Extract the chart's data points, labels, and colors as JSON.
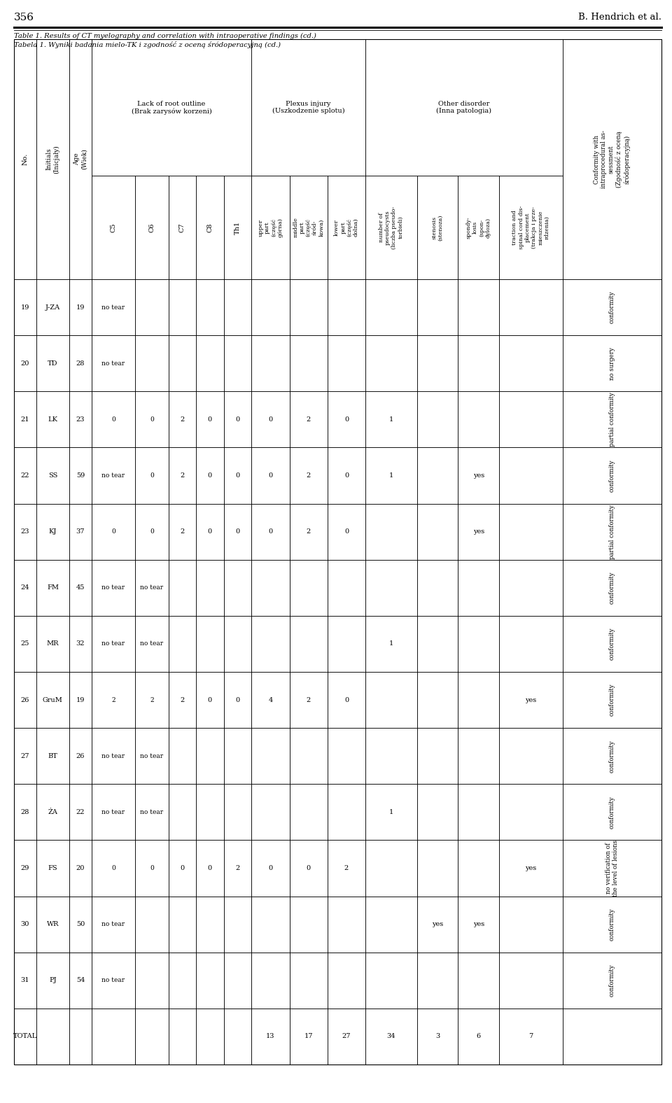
{
  "page_number": "356",
  "author": "B. Hendrich et al.",
  "table_title_en": "Table 1. Results of CT myelography and correlation with intraoperative findings (cd.)",
  "table_title_pl": "Tabela 1. Wyniki badania mielo-TK i zgodność z oceną śródoperacyjną (cd.)",
  "rows": [
    {
      "No": "19",
      "Initials": "J-ZA",
      "Age": "19",
      "C5": "no tear",
      "C6": "",
      "C7": "",
      "C8": "",
      "Th1": "",
      "upper": "",
      "middle": "",
      "lower": "",
      "pseudocysts": "",
      "stenosis": "",
      "spondylosis": "",
      "traction": "",
      "conformity": "conformity"
    },
    {
      "No": "20",
      "Initials": "TD",
      "Age": "28",
      "C5": "no tear",
      "C6": "",
      "C7": "",
      "C8": "",
      "Th1": "",
      "upper": "",
      "middle": "",
      "lower": "",
      "pseudocysts": "",
      "stenosis": "",
      "spondylosis": "",
      "traction": "",
      "conformity": "no surgery"
    },
    {
      "No": "21",
      "Initials": "LK",
      "Age": "23",
      "C5": "0",
      "C6": "0",
      "C7": "2",
      "C8": "0",
      "Th1": "0",
      "upper": "0",
      "middle": "2",
      "lower": "0",
      "pseudocysts": "1",
      "stenosis": "",
      "spondylosis": "",
      "traction": "",
      "conformity": "partial conformity"
    },
    {
      "No": "22",
      "Initials": "SS",
      "Age": "59",
      "C5": "no tear",
      "C6": "0",
      "C7": "2",
      "C8": "0",
      "Th1": "0",
      "upper": "0",
      "middle": "2",
      "lower": "0",
      "pseudocysts": "1",
      "stenosis": "",
      "spondylosis": "yes",
      "traction": "",
      "conformity": "conformity"
    },
    {
      "No": "23",
      "Initials": "KJ",
      "Age": "37",
      "C5": "0",
      "C6": "0",
      "C7": "2",
      "C8": "0",
      "Th1": "0",
      "upper": "0",
      "middle": "2",
      "lower": "0",
      "pseudocysts": "",
      "stenosis": "",
      "spondylosis": "yes",
      "traction": "",
      "conformity": "partial conformity"
    },
    {
      "No": "24",
      "Initials": "FM",
      "Age": "45",
      "C5": "no tear",
      "C6": "no tear",
      "C7": "",
      "C8": "",
      "Th1": "",
      "upper": "",
      "middle": "",
      "lower": "",
      "pseudocysts": "",
      "stenosis": "",
      "spondylosis": "",
      "traction": "",
      "conformity": "conformity"
    },
    {
      "No": "25",
      "Initials": "MR",
      "Age": "32",
      "C5": "no tear",
      "C6": "no tear",
      "C7": "",
      "C8": "",
      "Th1": "",
      "upper": "",
      "middle": "",
      "lower": "",
      "pseudocysts": "1",
      "stenosis": "",
      "spondylosis": "",
      "traction": "",
      "conformity": "conformity"
    },
    {
      "No": "26",
      "Initials": "GruM",
      "Age": "19",
      "C5": "2",
      "C6": "2",
      "C7": "2",
      "C8": "0",
      "Th1": "0",
      "upper": "4",
      "middle": "2",
      "lower": "0",
      "pseudocysts": "",
      "stenosis": "",
      "spondylosis": "",
      "traction": "yes",
      "conformity": "conformity"
    },
    {
      "No": "27",
      "Initials": "BT",
      "Age": "26",
      "C5": "no tear",
      "C6": "no tear",
      "C7": "",
      "C8": "",
      "Th1": "",
      "upper": "",
      "middle": "",
      "lower": "",
      "pseudocysts": "",
      "stenosis": "",
      "spondylosis": "",
      "traction": "",
      "conformity": "conformity"
    },
    {
      "No": "28",
      "Initials": "ŻA",
      "Age": "22",
      "C5": "no tear",
      "C6": "no tear",
      "C7": "",
      "C8": "",
      "Th1": "",
      "upper": "",
      "middle": "",
      "lower": "",
      "pseudocysts": "1",
      "stenosis": "",
      "spondylosis": "",
      "traction": "",
      "conformity": "conformity"
    },
    {
      "No": "29",
      "Initials": "FS",
      "Age": "20",
      "C5": "0",
      "C6": "0",
      "C7": "0",
      "C8": "0",
      "Th1": "2",
      "upper": "0",
      "middle": "0",
      "lower": "2",
      "pseudocysts": "",
      "stenosis": "",
      "spondylosis": "",
      "traction": "yes",
      "conformity": "no verification of\nthe level of lesions"
    },
    {
      "No": "30",
      "Initials": "WR",
      "Age": "50",
      "C5": "no tear",
      "C6": "",
      "C7": "",
      "C8": "",
      "Th1": "",
      "upper": "",
      "middle": "",
      "lower": "",
      "pseudocysts": "",
      "stenosis": "yes",
      "spondylosis": "yes",
      "traction": "",
      "conformity": "conformity"
    },
    {
      "No": "31",
      "Initials": "PJ",
      "Age": "54",
      "C5": "no tear",
      "C6": "",
      "C7": "",
      "C8": "",
      "Th1": "",
      "upper": "",
      "middle": "",
      "lower": "",
      "pseudocysts": "",
      "stenosis": "",
      "spondylosis": "",
      "traction": "",
      "conformity": "conformity"
    },
    {
      "No": "TOTAL",
      "Initials": "",
      "Age": "",
      "C5": "",
      "C6": "",
      "C7": "",
      "C8": "",
      "Th1": "",
      "upper": "13",
      "middle": "17",
      "lower": "27",
      "pseudocysts": "34",
      "stenosis": "3",
      "spondylosis": "6",
      "traction": "7",
      "conformity": ""
    }
  ]
}
